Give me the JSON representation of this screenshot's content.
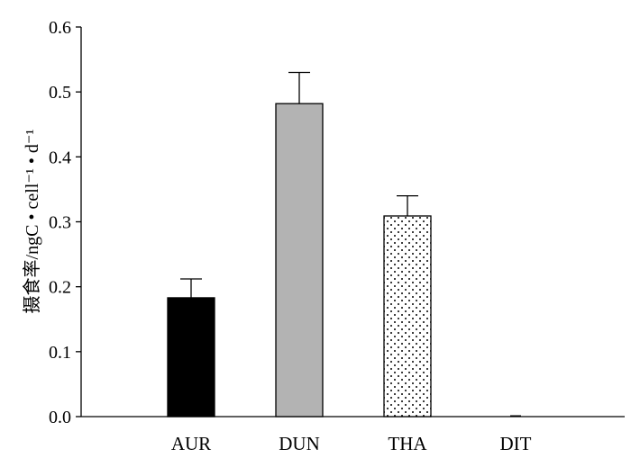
{
  "chart_data": {
    "type": "bar",
    "ylabel": "摄食率/ngC • cell⁻¹ • d⁻¹",
    "categories": [
      "AUR",
      "DUN",
      "THA",
      "DIT"
    ],
    "values": [
      0.183,
      0.482,
      0.309,
      0.0
    ],
    "errors": [
      0.029,
      0.048,
      0.031,
      0.0
    ],
    "bar_fills": [
      "solid-black",
      "solid-gray",
      "dotted",
      "none"
    ],
    "ylim": [
      0,
      0.6
    ],
    "yticks": [
      "0.0",
      "0.1",
      "0.2",
      "0.3",
      "0.4",
      "0.5",
      "0.6"
    ],
    "grid": false,
    "legend": "none",
    "colors": {
      "AUR": "#000000",
      "DUN": "#b3b3b3",
      "THA": "#ffffff",
      "axis": "#000000"
    }
  }
}
